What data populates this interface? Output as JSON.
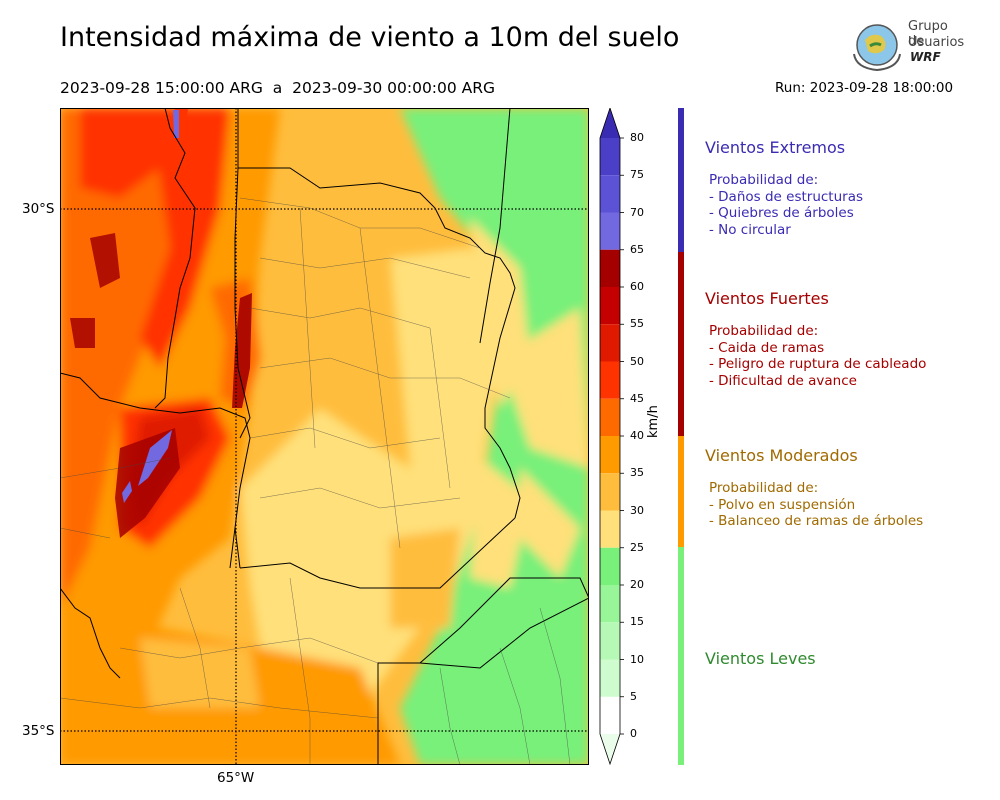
{
  "header": {
    "title": "Intensidad máxima de viento a 10m del suelo",
    "date_range": "2023-09-28 15:00:00 ARG  a  2023-09-30 00:00:00 ARG",
    "run": "Run: 2023-09-28 18:00:00"
  },
  "logo": {
    "line1": "Grupo de",
    "line2": "Usuarios",
    "line3": "WRF"
  },
  "map": {
    "lat_labels": [
      "30°S",
      "35°S"
    ],
    "lon_labels": [
      "65°W"
    ]
  },
  "colorbar": {
    "unit": "km/h",
    "ticks": [
      "80",
      "75",
      "70",
      "65",
      "60",
      "55",
      "50",
      "45",
      "40",
      "35",
      "30",
      "25",
      "20",
      "15",
      "10",
      "5",
      "0"
    ],
    "colors": [
      "#3a2bb3",
      "#4a3fc6",
      "#5b52d6",
      "#7268e0",
      "#a50000",
      "#c40000",
      "#e01a00",
      "#ff3300",
      "#ff6a00",
      "#ff9a00",
      "#ffbd3d",
      "#ffe07a",
      "#78f07a",
      "#98f598",
      "#b6f9b6",
      "#cffccf",
      "#eafdea"
    ]
  },
  "categories": [
    {
      "title": "Vientos Extremos",
      "color": "#3a2bb3",
      "desc": [
        " Probabilidad de:",
        " - Daños de estructuras",
        " - Quiebres de árboles",
        " - No circular"
      ]
    },
    {
      "title": "Vientos Fuertes",
      "color": "#a50000",
      "desc": [
        " Probabilidad de:",
        " - Caida de ramas",
        " - Peligro de ruptura de cableado",
        " - Dificultad de avance"
      ]
    },
    {
      "title": "Vientos Moderados",
      "color": "#a06a00",
      "desc": [
        " Probabilidad de:",
        " - Polvo en suspensión",
        " - Balanceo de ramas de árboles"
      ]
    },
    {
      "title": "Vientos Leves",
      "color": "#2f8a2f",
      "desc": []
    }
  ]
}
